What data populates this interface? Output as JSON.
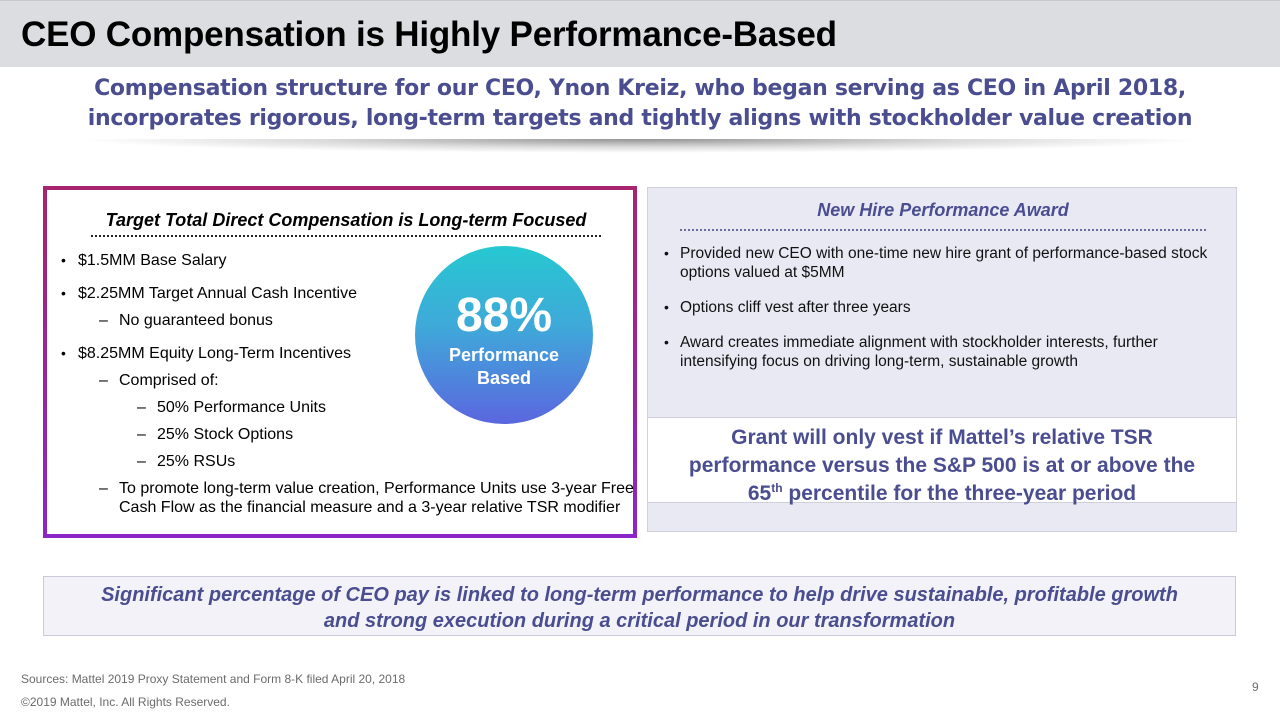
{
  "slide": {
    "title": "CEO Compensation is Highly Performance-Based",
    "subtitle_line1": "Compensation structure for our CEO, Ynon Kreiz, who began serving as CEO in April 2018,",
    "subtitle_line2": "incorporates rigorous, long-term targets and tightly aligns with stockholder value creation"
  },
  "left_panel": {
    "heading": "Target Total Direct Compensation is Long-term Focused",
    "bullet_marker": "•",
    "dash_marker": "–",
    "items": [
      {
        "level": 1,
        "text": "$1.5MM Base Salary"
      },
      {
        "level": 1,
        "text": "$2.25MM Target Annual Cash Incentive"
      },
      {
        "level": 2,
        "text": "No guaranteed bonus"
      },
      {
        "level": 1,
        "text": "$8.25MM Equity Long-Term Incentives"
      },
      {
        "level": 2,
        "text": "Comprised of:"
      },
      {
        "level": 3,
        "text": "50% Performance Units"
      },
      {
        "level": 3,
        "text": "25% Stock Options"
      },
      {
        "level": 3,
        "text": "25% RSUs"
      },
      {
        "level": 2,
        "text": "To promote long-term value creation, Performance Units use 3-year Free"
      },
      {
        "level": 2,
        "text": "Cash Flow as the financial measure and a 3-year relative TSR modifier",
        "continuation": true
      }
    ],
    "circle": {
      "percent": "88%",
      "label_line1": "Performance",
      "label_line2": "Based"
    }
  },
  "right_panel": {
    "heading": "New Hire Performance Award",
    "bullets": [
      "Provided new CEO with one-time new hire grant of performance-based stock options valued at $5MM",
      "Options cliff vest after three years",
      "Award creates immediate alignment with stockholder interests, further intensifying focus on driving long-term, sustainable growth"
    ],
    "callout": {
      "line1": "Grant will only vest if Mattel’s relative TSR",
      "line2": "performance versus the S&P 500 is at or above the",
      "line3_num": "65",
      "line3_sup": "th",
      "line3_rest": " percentile for the three-year period"
    }
  },
  "bottom_box": {
    "line1": "Significant percentage of CEO pay is linked to long-term performance to help drive sustainable, profitable growth",
    "line2": "and strong execution during a critical period in our transformation"
  },
  "footer": {
    "sources": "Sources: Mattel 2019 Proxy Statement and Form 8-K filed April 20, 2018",
    "copyright": "©2019 Mattel, Inc.  All Rights Reserved.",
    "page_number": "9"
  },
  "colors": {
    "accent_navy": "#4a4d8f",
    "title_bar": "#dcdde0",
    "panel_border_top": "#a8246e",
    "panel_border_bottom": "#8a25c9",
    "circle_top": "#26c8d1",
    "circle_bottom": "#5b66df"
  }
}
